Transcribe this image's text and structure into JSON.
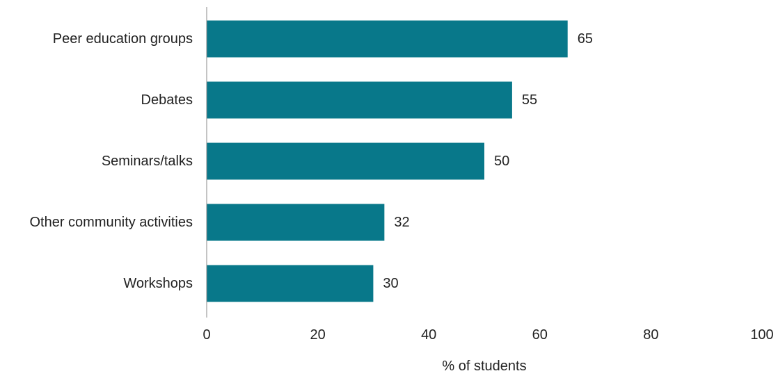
{
  "chart_data": {
    "type": "bar",
    "orientation": "horizontal",
    "categories": [
      "Peer education groups",
      "Debates",
      "Seminars/talks",
      "Other community activities",
      "Workshops"
    ],
    "values": [
      65,
      55,
      50,
      32,
      30
    ],
    "value_labels": [
      "65",
      "55",
      "50",
      "32",
      "30"
    ],
    "xlabel": "% of students",
    "ylabel": "",
    "xlim": [
      0,
      100
    ],
    "x_ticks": [
      0,
      20,
      40,
      60,
      80,
      100
    ],
    "x_tick_labels": [
      "0",
      "20",
      "40",
      "60",
      "80",
      "100"
    ],
    "grid": false,
    "bar_color": "#08788A"
  }
}
